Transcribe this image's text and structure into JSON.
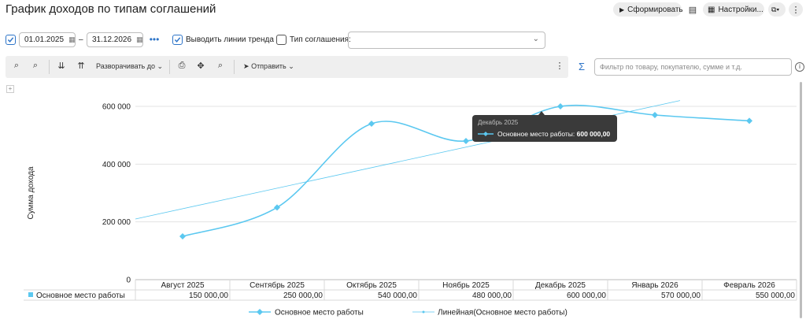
{
  "header": {
    "title": "График доходов по типам соглашений",
    "generate_label": "Сформировать",
    "settings_label": "Настройки..."
  },
  "filters": {
    "date_from": "01.01.2025",
    "date_separator": "–",
    "date_to": "31.12.2026",
    "trend_checked": true,
    "trend_label": "Выводить линии тренда",
    "agreement_type_checked": false,
    "agreement_type_label": "Тип соглашения:",
    "agreement_type_value": ""
  },
  "toolbar": {
    "expand_label": "Разворачивать до",
    "send_label": "Отправить"
  },
  "search": {
    "placeholder": "Фильтр по товару, покупателю, сумме и т.д."
  },
  "colors": {
    "accent": "#2d74c8",
    "series": "#5bc8f0",
    "tooltip_bg": "#3a3a3a"
  },
  "chart_data": {
    "type": "line",
    "ylabel": "Сумма дохода",
    "ylim": [
      0,
      600000
    ],
    "y_ticks": [
      "0",
      "200 000",
      "400 000",
      "600 000"
    ],
    "categories": [
      "Август 2025",
      "Сентябрь 2025",
      "Октябрь 2025",
      "Ноябрь 2025",
      "Декабрь 2025",
      "Январь 2026",
      "Февраль 2026"
    ],
    "series": [
      {
        "name": "Основное место работы",
        "values": [
          150000,
          250000,
          540000,
          480000,
          600000,
          570000,
          550000
        ],
        "value_labels": [
          "150 000,00",
          "250 000,00",
          "540 000,00",
          "480 000,00",
          "600 000,00",
          "570 000,00",
          "550 000,00"
        ]
      }
    ],
    "trend": {
      "name": "Линейная(Основное место работы)",
      "from_value": 210000,
      "to_value": 620000
    },
    "tooltip": {
      "title": "Декабрь 2025",
      "series_label": "Основное место работы:",
      "value": "600 000,00"
    }
  }
}
